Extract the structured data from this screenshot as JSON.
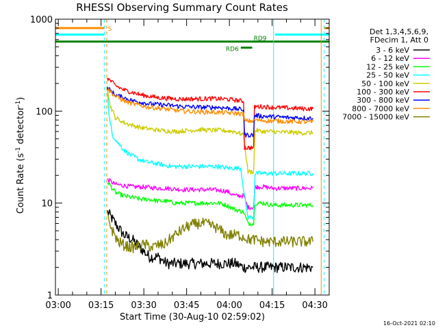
{
  "chart_data": {
    "type": "line",
    "title": "RHESSI Observing Summary Count Rates",
    "xlabel": "Start Time (30-Aug-10 02:59:02)",
    "ylabel_parts": [
      "Count Rate (s",
      "-1",
      " detector",
      "-1",
      ")"
    ],
    "x_unit": "minutes of day",
    "xlim": [
      179,
      275
    ],
    "ylim": [
      1,
      1000
    ],
    "yscale": "log",
    "x_ticks": [
      {
        "value": 180,
        "label": "03:00"
      },
      {
        "value": 195,
        "label": "03:15"
      },
      {
        "value": 210,
        "label": "03:30"
      },
      {
        "value": 225,
        "label": "03:45"
      },
      {
        "value": 240,
        "label": "04:00"
      },
      {
        "value": 255,
        "label": "04:15"
      },
      {
        "value": 270,
        "label": "04:30"
      }
    ],
    "y_ticks": [
      {
        "value": 1,
        "label": "1"
      },
      {
        "value": 10,
        "label": "10"
      },
      {
        "value": 100,
        "label": "100"
      },
      {
        "value": 1000,
        "label": "1000"
      }
    ],
    "legend_position": "right",
    "legend_header": [
      "Det 1,3,4,5,6,9,",
      "FDecim 1, Att 0"
    ],
    "series": [
      {
        "name": "3 - 6 keV",
        "color": "#000000",
        "points": [
          [
            197.3,
            8
          ],
          [
            200,
            6
          ],
          [
            203,
            4.5
          ],
          [
            206,
            4
          ],
          [
            209,
            3.2
          ],
          [
            212,
            2.6
          ],
          [
            215,
            2.6
          ],
          [
            218,
            2.2
          ],
          [
            221,
            2.2
          ],
          [
            224,
            2.2
          ],
          [
            227,
            2.2
          ],
          [
            230,
            2.2
          ],
          [
            233,
            2.2
          ],
          [
            236,
            2.2
          ],
          [
            239,
            2.2
          ],
          [
            242,
            2.2
          ],
          [
            245,
            2
          ],
          [
            248,
            2
          ],
          [
            251,
            2
          ],
          [
            254,
            2
          ],
          [
            257,
            2
          ],
          [
            260,
            2
          ],
          [
            263,
            2
          ],
          [
            266,
            2
          ],
          [
            269.3,
            2
          ]
        ]
      },
      {
        "name": "6 - 12 keV",
        "color": "#ff00ff",
        "points": [
          [
            197.3,
            18
          ],
          [
            200,
            16
          ],
          [
            203,
            15.5
          ],
          [
            206,
            15
          ],
          [
            209,
            15
          ],
          [
            212,
            14.8
          ],
          [
            215,
            14.5
          ],
          [
            218,
            14.5
          ],
          [
            221,
            14.2
          ],
          [
            224,
            14
          ],
          [
            227,
            14
          ],
          [
            230,
            14
          ],
          [
            233,
            14
          ],
          [
            236,
            13.8
          ],
          [
            239,
            13.5
          ],
          [
            242,
            12
          ],
          [
            245,
            12
          ],
          [
            246.5,
            9
          ],
          [
            248.5,
            9
          ],
          [
            249,
            15
          ],
          [
            252,
            15
          ],
          [
            255,
            14.5
          ],
          [
            258,
            14.5
          ],
          [
            261,
            14.5
          ],
          [
            264,
            14.5
          ],
          [
            267,
            14.5
          ],
          [
            269.3,
            14.5
          ]
        ]
      },
      {
        "name": "12 - 25 keV",
        "color": "#00ff00",
        "points": [
          [
            197.3,
            17
          ],
          [
            200,
            13
          ],
          [
            203,
            12
          ],
          [
            206,
            11.5
          ],
          [
            209,
            11
          ],
          [
            212,
            11
          ],
          [
            215,
            10.5
          ],
          [
            218,
            10.5
          ],
          [
            221,
            10
          ],
          [
            224,
            10
          ],
          [
            227,
            10
          ],
          [
            230,
            10
          ],
          [
            233,
            10
          ],
          [
            236,
            10
          ],
          [
            239,
            9.5
          ],
          [
            242,
            8.5
          ],
          [
            245,
            8
          ],
          [
            246.5,
            6
          ],
          [
            248.5,
            6
          ],
          [
            249,
            10
          ],
          [
            252,
            10
          ],
          [
            255,
            9.5
          ],
          [
            258,
            9.5
          ],
          [
            261,
            9.5
          ],
          [
            264,
            9.5
          ],
          [
            267,
            9.5
          ],
          [
            269.3,
            9.5
          ]
        ]
      },
      {
        "name": "25 - 50 keV",
        "color": "#00ffff",
        "points": [
          [
            197.2,
            200
          ],
          [
            197.5,
            120
          ],
          [
            198,
            80
          ],
          [
            199,
            55
          ],
          [
            201,
            45
          ],
          [
            203,
            38
          ],
          [
            205,
            34
          ],
          [
            208,
            30
          ],
          [
            211,
            28
          ],
          [
            214,
            27
          ],
          [
            217,
            26
          ],
          [
            220,
            25
          ],
          [
            224,
            25
          ],
          [
            228,
            25
          ],
          [
            232,
            25
          ],
          [
            236,
            25
          ],
          [
            240,
            24
          ],
          [
            244,
            24
          ],
          [
            245,
            14
          ],
          [
            246.5,
            7
          ],
          [
            248.5,
            7
          ],
          [
            249,
            21
          ],
          [
            252,
            21
          ],
          [
            255,
            21
          ],
          [
            258,
            21
          ],
          [
            261,
            21
          ],
          [
            264,
            21
          ],
          [
            267,
            21
          ],
          [
            269.3,
            21
          ]
        ]
      },
      {
        "name": "50 - 100 keV",
        "color": "#cccc00",
        "points": [
          [
            197.2,
            190
          ],
          [
            198,
            120
          ],
          [
            200,
            85
          ],
          [
            203,
            75
          ],
          [
            206,
            70
          ],
          [
            209,
            66
          ],
          [
            212,
            64
          ],
          [
            215,
            62
          ],
          [
            218,
            61
          ],
          [
            221,
            60
          ],
          [
            224,
            61
          ],
          [
            227,
            62
          ],
          [
            230,
            63
          ],
          [
            233,
            62
          ],
          [
            236,
            62
          ],
          [
            239,
            61
          ],
          [
            242,
            60
          ],
          [
            245,
            55
          ],
          [
            246.5,
            22
          ],
          [
            248.5,
            22
          ],
          [
            249,
            62
          ],
          [
            252,
            60
          ],
          [
            255,
            60
          ],
          [
            258,
            59
          ],
          [
            261,
            59
          ],
          [
            264,
            58
          ],
          [
            267,
            58
          ],
          [
            269.3,
            58
          ]
        ]
      },
      {
        "name": "100 - 300 keV",
        "color": "#ff0000",
        "points": [
          [
            197.2,
            230
          ],
          [
            200,
            190
          ],
          [
            203,
            170
          ],
          [
            206,
            160
          ],
          [
            209,
            150
          ],
          [
            212,
            145
          ],
          [
            215,
            140
          ],
          [
            218,
            138
          ],
          [
            221,
            136
          ],
          [
            224,
            135
          ],
          [
            227,
            136
          ],
          [
            230,
            136
          ],
          [
            233,
            137
          ],
          [
            236,
            136
          ],
          [
            239,
            135
          ],
          [
            242,
            132
          ],
          [
            245,
            128
          ],
          [
            245.3,
            40
          ],
          [
            248.5,
            40
          ],
          [
            248.8,
            112
          ],
          [
            252,
            112
          ],
          [
            255,
            110
          ],
          [
            258,
            109
          ],
          [
            261,
            108
          ],
          [
            264,
            107
          ],
          [
            267,
            106
          ],
          [
            269.3,
            106
          ]
        ]
      },
      {
        "name": "300 - 800 keV",
        "color": "#0000ff",
        "points": [
          [
            197.2,
            180
          ],
          [
            200,
            150
          ],
          [
            203,
            140
          ],
          [
            206,
            130
          ],
          [
            209,
            125
          ],
          [
            212,
            120
          ],
          [
            215,
            118
          ],
          [
            218,
            116
          ],
          [
            221,
            114
          ],
          [
            224,
            112
          ],
          [
            227,
            111
          ],
          [
            230,
            110
          ],
          [
            233,
            110
          ],
          [
            236,
            110
          ],
          [
            239,
            108
          ],
          [
            242,
            106
          ],
          [
            245,
            104
          ],
          [
            245.3,
            55
          ],
          [
            248.5,
            55
          ],
          [
            248.8,
            90
          ],
          [
            252,
            88
          ],
          [
            255,
            87
          ],
          [
            258,
            86
          ],
          [
            261,
            85
          ],
          [
            264,
            85
          ],
          [
            267,
            84
          ],
          [
            269.3,
            84
          ]
        ]
      },
      {
        "name": "800 - 7000 keV",
        "color": "#ff8c00",
        "points": [
          [
            197.2,
            175
          ],
          [
            200,
            145
          ],
          [
            203,
            130
          ],
          [
            206,
            120
          ],
          [
            209,
            115
          ],
          [
            212,
            110
          ],
          [
            215,
            108
          ],
          [
            218,
            105
          ],
          [
            221,
            102
          ],
          [
            224,
            100
          ],
          [
            227,
            99
          ],
          [
            230,
            98
          ],
          [
            233,
            98
          ],
          [
            236,
            97
          ],
          [
            239,
            96
          ],
          [
            242,
            95
          ],
          [
            245,
            93
          ],
          [
            245.3,
            78
          ],
          [
            248.5,
            78
          ],
          [
            248.8,
            80
          ],
          [
            252,
            79
          ],
          [
            255,
            78
          ],
          [
            258,
            78
          ],
          [
            261,
            77
          ],
          [
            264,
            77
          ],
          [
            267,
            76
          ],
          [
            269.3,
            76
          ]
        ]
      },
      {
        "name": "7000 - 15000 keV",
        "color": "#808000",
        "points": [
          [
            197.3,
            7
          ],
          [
            199,
            5
          ],
          [
            201,
            3.8
          ],
          [
            203,
            3.5
          ],
          [
            205,
            3.3
          ],
          [
            207,
            3.3
          ],
          [
            209,
            3.5
          ],
          [
            211,
            3.5
          ],
          [
            213,
            3.3
          ],
          [
            215,
            3.5
          ],
          [
            217,
            3.5
          ],
          [
            219,
            4
          ],
          [
            221,
            4.5
          ],
          [
            223,
            5
          ],
          [
            225,
            5.5
          ],
          [
            227,
            5.8
          ],
          [
            229,
            6
          ],
          [
            231,
            6
          ],
          [
            233,
            5.8
          ],
          [
            235,
            5.5
          ],
          [
            237,
            5
          ],
          [
            239,
            4.5
          ],
          [
            241,
            4.5
          ],
          [
            243,
            4.5
          ],
          [
            245,
            4.3
          ],
          [
            247,
            4
          ],
          [
            249,
            4
          ],
          [
            252,
            3.8
          ],
          [
            255,
            3.8
          ],
          [
            258,
            3.8
          ],
          [
            261,
            3.8
          ],
          [
            264,
            3.8
          ],
          [
            267,
            3.8
          ],
          [
            269.3,
            3.8
          ]
        ]
      }
    ],
    "state_bars": [
      {
        "color": "#ff8c00",
        "y": 800,
        "x_start": 179,
        "x_end": 196.2,
        "label": "S"
      },
      {
        "color": "#ff8c00",
        "y": 800,
        "x_start": 273.2,
        "x_end": 275,
        "label": ""
      },
      {
        "color": "#00ffff",
        "y": 680,
        "x_start": 179,
        "x_end": 196.2,
        "label": ""
      },
      {
        "color": "#00ffff",
        "y": 680,
        "x_start": 256,
        "x_end": 275,
        "label": ""
      },
      {
        "color": "#008000",
        "y": 570,
        "x_start": 179,
        "x_end": 275,
        "label": "RD9"
      },
      {
        "color": "#008000",
        "y": 490,
        "x_start": 244,
        "x_end": 248,
        "label": "RD6"
      }
    ],
    "vertical_lines": [
      {
        "x": 196.2,
        "color": "#00ffff",
        "style": "dashed"
      },
      {
        "x": 197.0,
        "color": "#ff8c00",
        "style": "dashed"
      },
      {
        "x": 255.5,
        "color": "#00ffff",
        "style": "solid"
      },
      {
        "x": 272.2,
        "color": "#ff8c00",
        "style": "solid"
      },
      {
        "x": 273.2,
        "color": "#00ffff",
        "style": "dashed"
      }
    ]
  },
  "footer": {
    "timestamp": "16-Oct-2021 02:10"
  }
}
